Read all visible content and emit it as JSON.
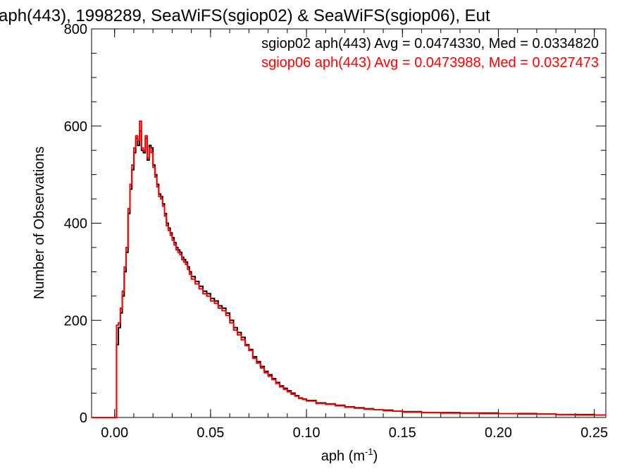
{
  "chart_data": {
    "type": "line",
    "title": "aph(443), 1998289, SeaWiFS(sgiop02) & SeaWiFS(sgiop06), Eut",
    "xlabel_base": "aph (m",
    "xlabel_sup": "-1",
    "xlabel_close": ")",
    "ylabel": "Number of Observations",
    "xlim": [
      -0.012,
      0.256
    ],
    "ylim": [
      0,
      800
    ],
    "xticks": [
      0.0,
      0.05,
      0.1,
      0.15,
      0.2,
      0.25
    ],
    "xtick_labels": [
      "0.00",
      "0.05",
      "0.10",
      "0.15",
      "0.20",
      "0.25"
    ],
    "yticks": [
      0,
      200,
      400,
      600,
      800
    ],
    "ytick_labels": [
      "0",
      "200",
      "400",
      "600",
      "800"
    ],
    "grid": false,
    "legend_position": "top-right",
    "series": [
      {
        "name": "sgiop02 aph(443) Avg = 0.0474330, Med = 0.0334820",
        "color": "#000000",
        "x": [
          -0.012,
          0.0,
          0.001,
          0.002,
          0.003,
          0.004,
          0.005,
          0.006,
          0.007,
          0.008,
          0.009,
          0.01,
          0.011,
          0.012,
          0.013,
          0.014,
          0.015,
          0.016,
          0.017,
          0.018,
          0.019,
          0.02,
          0.021,
          0.022,
          0.023,
          0.024,
          0.025,
          0.026,
          0.027,
          0.028,
          0.029,
          0.03,
          0.031,
          0.032,
          0.033,
          0.034,
          0.035,
          0.036,
          0.037,
          0.038,
          0.039,
          0.04,
          0.042,
          0.044,
          0.046,
          0.048,
          0.05,
          0.052,
          0.054,
          0.056,
          0.058,
          0.06,
          0.062,
          0.064,
          0.066,
          0.068,
          0.07,
          0.072,
          0.074,
          0.076,
          0.078,
          0.08,
          0.082,
          0.084,
          0.086,
          0.088,
          0.09,
          0.092,
          0.094,
          0.096,
          0.098,
          0.1,
          0.105,
          0.11,
          0.115,
          0.12,
          0.125,
          0.13,
          0.135,
          0.14,
          0.145,
          0.15,
          0.16,
          0.17,
          0.18,
          0.19,
          0.2,
          0.21,
          0.22,
          0.23,
          0.24,
          0.25,
          0.256
        ],
        "y": [
          0,
          0,
          150,
          185,
          215,
          250,
          300,
          340,
          420,
          470,
          510,
          545,
          575,
          560,
          590,
          550,
          545,
          575,
          530,
          560,
          555,
          520,
          500,
          480,
          460,
          455,
          440,
          420,
          400,
          390,
          380,
          370,
          360,
          350,
          345,
          340,
          330,
          325,
          320,
          310,
          300,
          290,
          280,
          270,
          260,
          255,
          245,
          240,
          230,
          225,
          215,
          200,
          185,
          175,
          165,
          150,
          140,
          125,
          115,
          105,
          95,
          88,
          80,
          72,
          65,
          60,
          55,
          50,
          45,
          40,
          38,
          35,
          30,
          28,
          25,
          22,
          20,
          18,
          16,
          15,
          13,
          12,
          10,
          10,
          9,
          9,
          8,
          8,
          7,
          6,
          6,
          5,
          5
        ]
      },
      {
        "name": "sgiop06 aph(443) Avg = 0.0473988, Med = 0.0327473",
        "color": "#ff0000",
        "x": [
          -0.012,
          0.0,
          0.001,
          0.002,
          0.003,
          0.004,
          0.005,
          0.006,
          0.007,
          0.008,
          0.009,
          0.01,
          0.011,
          0.012,
          0.013,
          0.014,
          0.015,
          0.016,
          0.017,
          0.018,
          0.019,
          0.02,
          0.021,
          0.022,
          0.023,
          0.024,
          0.025,
          0.026,
          0.027,
          0.028,
          0.029,
          0.03,
          0.031,
          0.032,
          0.033,
          0.034,
          0.035,
          0.036,
          0.037,
          0.038,
          0.039,
          0.04,
          0.042,
          0.044,
          0.046,
          0.048,
          0.05,
          0.052,
          0.054,
          0.056,
          0.058,
          0.06,
          0.062,
          0.064,
          0.066,
          0.068,
          0.07,
          0.072,
          0.074,
          0.076,
          0.078,
          0.08,
          0.082,
          0.084,
          0.086,
          0.088,
          0.09,
          0.092,
          0.094,
          0.096,
          0.098,
          0.1,
          0.105,
          0.11,
          0.115,
          0.12,
          0.125,
          0.13,
          0.135,
          0.14,
          0.145,
          0.15,
          0.16,
          0.17,
          0.18,
          0.19,
          0.2,
          0.21,
          0.22,
          0.23,
          0.24,
          0.25,
          0.256
        ],
        "y": [
          0,
          0,
          190,
          195,
          225,
          260,
          310,
          350,
          430,
          480,
          520,
          555,
          580,
          570,
          610,
          555,
          550,
          580,
          535,
          555,
          545,
          515,
          495,
          475,
          455,
          450,
          435,
          415,
          395,
          385,
          375,
          365,
          355,
          345,
          340,
          335,
          325,
          320,
          315,
          305,
          295,
          285,
          275,
          265,
          255,
          250,
          240,
          235,
          225,
          220,
          210,
          195,
          180,
          170,
          160,
          148,
          138,
          122,
          112,
          102,
          92,
          85,
          78,
          70,
          63,
          58,
          53,
          48,
          44,
          39,
          37,
          34,
          29,
          27,
          24,
          21,
          19,
          17,
          16,
          14,
          13,
          11,
          10,
          9,
          9,
          8,
          8,
          7,
          7,
          6,
          5,
          5,
          5
        ]
      }
    ]
  }
}
